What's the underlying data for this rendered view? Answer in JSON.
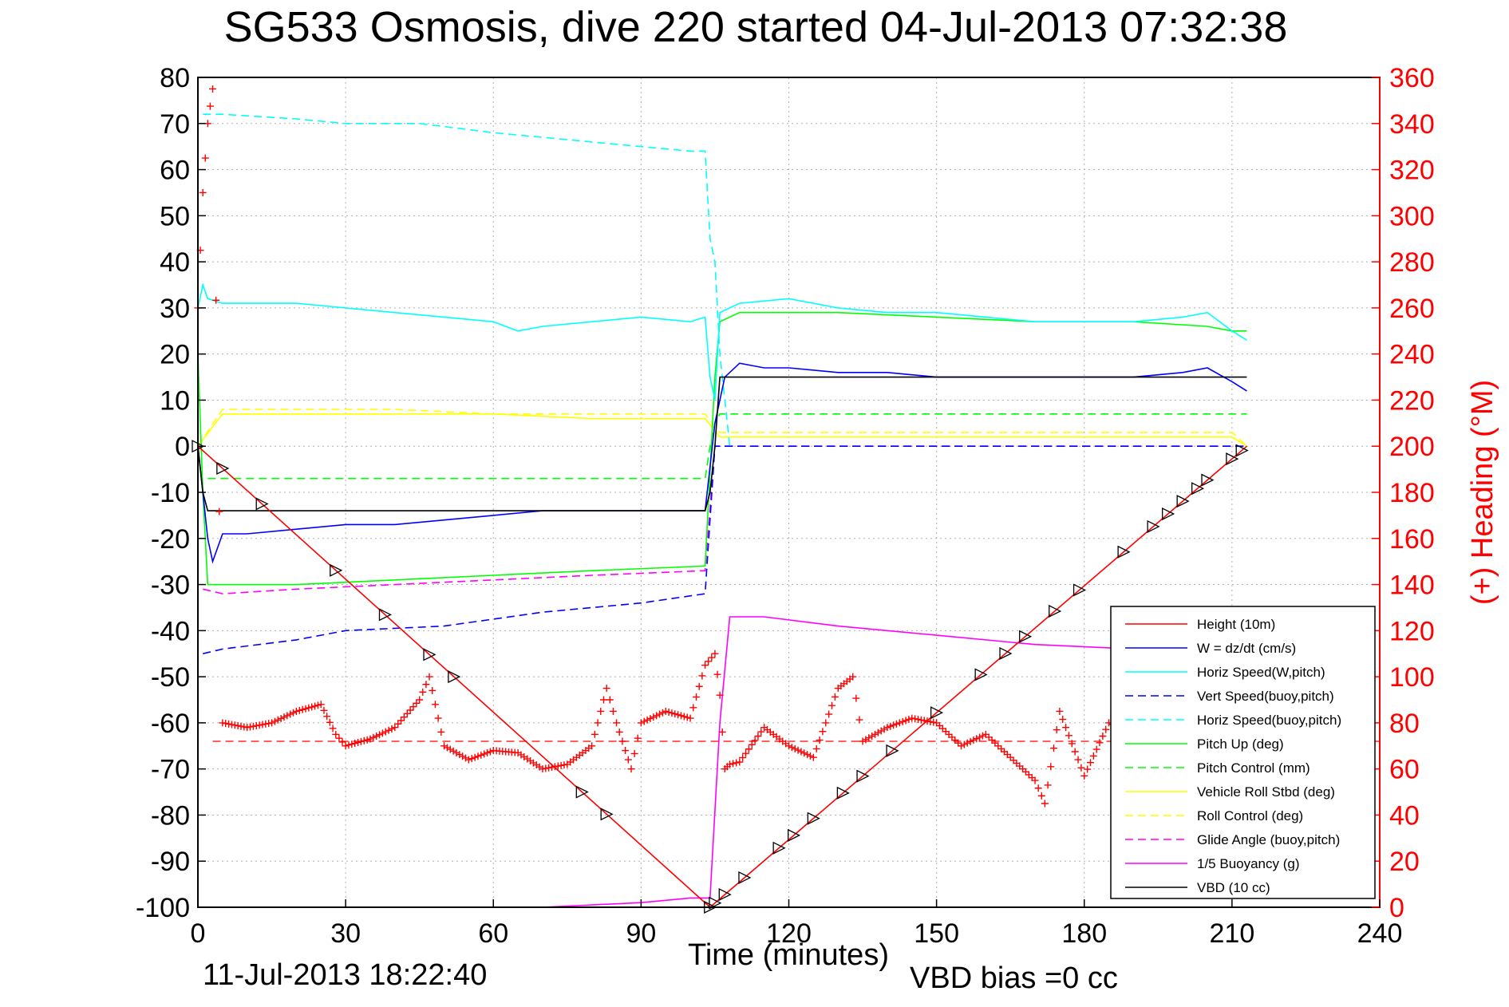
{
  "title": "SG533 Osmosis, dive 220 started 04-Jul-2013 07:32:38",
  "footer": {
    "timestamp": "11-Jul-2013 18:22:40",
    "vbd_bias": "VBD bias =0 cc"
  },
  "chart_data": {
    "type": "line",
    "title": "SG533 Osmosis, dive 220 started 04-Jul-2013 07:32:38",
    "xlabel": "Time (minutes)",
    "ylabel": "",
    "y2label": "(+) Heading (°M)",
    "xlim": [
      0,
      240
    ],
    "ylim": [
      -100,
      80
    ],
    "y2lim": [
      0,
      360
    ],
    "xticks": [
      0,
      30,
      60,
      90,
      120,
      150,
      180,
      210,
      240
    ],
    "yticks": [
      -100,
      -90,
      -80,
      -70,
      -60,
      -50,
      -40,
      -30,
      -20,
      -10,
      0,
      10,
      20,
      30,
      40,
      50,
      60,
      70,
      80
    ],
    "y2ticks": [
      0,
      20,
      40,
      60,
      80,
      100,
      120,
      140,
      160,
      180,
      200,
      220,
      240,
      260,
      280,
      300,
      320,
      340,
      360
    ],
    "grid": true,
    "legend_position": "lower-right",
    "colors": {
      "height": "#ff0000",
      "w": "#0000ff",
      "horiz_speed": "#00ffff",
      "pitch": "#00ff00",
      "roll": "#ffff00",
      "glide": "#ff00ff",
      "buoyancy": "#ff00ff",
      "vbd": "#000000",
      "heading": "#ff0000",
      "right_axis": "#ff0000"
    },
    "series": [
      {
        "name": "Height (10m)",
        "style": "solid",
        "color": "#ff0000",
        "x": [
          0,
          104,
          213
        ],
        "y": [
          0,
          -100,
          0
        ]
      },
      {
        "name": "W = dz/dt (cm/s)",
        "style": "solid",
        "color": "#0000ff",
        "x": [
          0,
          1,
          2,
          3,
          5,
          10,
          20,
          30,
          40,
          50,
          60,
          70,
          80,
          90,
          100,
          103,
          105,
          107,
          110,
          115,
          120,
          130,
          140,
          150,
          160,
          170,
          180,
          190,
          200,
          205,
          210,
          213
        ],
        "y": [
          0,
          -10,
          -20,
          -25,
          -19,
          -19,
          -18,
          -17,
          -17,
          -16,
          -15,
          -14,
          -14,
          -14,
          -14,
          -14,
          5,
          15,
          18,
          17,
          17,
          16,
          16,
          15,
          15,
          15,
          15,
          15,
          16,
          17,
          14,
          12
        ]
      },
      {
        "name": "Horiz Speed(W,pitch)",
        "style": "solid",
        "color": "#00ffff",
        "x": [
          0,
          1,
          2,
          5,
          10,
          20,
          30,
          40,
          50,
          60,
          65,
          70,
          80,
          90,
          100,
          103,
          104,
          105,
          106,
          110,
          120,
          130,
          140,
          150,
          160,
          170,
          180,
          190,
          200,
          205,
          210,
          213
        ],
        "y": [
          30,
          35,
          32,
          31,
          31,
          31,
          30,
          29,
          28,
          27,
          25,
          26,
          27,
          28,
          27,
          28,
          15,
          10,
          29,
          31,
          32,
          30,
          29,
          29,
          28,
          27,
          27,
          27,
          28,
          29,
          25,
          23
        ]
      },
      {
        "name": "Vert Speed(buoy,pitch)",
        "style": "dashed",
        "color": "#0000ff",
        "x": [
          1,
          5,
          20,
          30,
          50,
          70,
          90,
          103,
          105,
          106,
          213
        ],
        "y": [
          -45,
          -44,
          -42,
          -40,
          -39,
          -36,
          -34,
          -32,
          0,
          0,
          0
        ]
      },
      {
        "name": "Horiz Speed(buoy,pitch)",
        "style": "dashed",
        "color": "#00ffff",
        "x": [
          1,
          5,
          20,
          30,
          45,
          60,
          80,
          90,
          100,
          103,
          104,
          105,
          106,
          108
        ],
        "y": [
          72,
          72,
          71,
          70,
          70,
          68,
          66,
          65,
          64,
          64,
          45,
          40,
          20,
          0
        ]
      },
      {
        "name": "Pitch Up (deg)",
        "style": "solid",
        "color": "#00ff00",
        "x": [
          0,
          1,
          2,
          5,
          20,
          40,
          60,
          80,
          103,
          105,
          106,
          110,
          130,
          150,
          170,
          190,
          205,
          210,
          213
        ],
        "y": [
          20,
          -10,
          -30,
          -30,
          -30,
          -29,
          -28,
          -27,
          -26,
          15,
          27,
          29,
          29,
          28,
          27,
          27,
          26,
          25,
          25
        ]
      },
      {
        "name": "Pitch Control (mm)",
        "style": "dashed",
        "color": "#00ff00",
        "x": [
          2,
          103,
          104,
          105,
          106,
          213
        ],
        "y": [
          -7,
          -7,
          0,
          5,
          7,
          7
        ]
      },
      {
        "name": "Vehicle Roll Stbd (deg)",
        "style": "solid",
        "color": "#ffff00",
        "x": [
          0,
          5,
          20,
          40,
          60,
          80,
          103,
          106,
          110,
          130,
          150,
          170,
          190,
          210,
          213
        ],
        "y": [
          0,
          7,
          7,
          7,
          7,
          6,
          6,
          2,
          2,
          2,
          2,
          2,
          2,
          2,
          0
        ]
      },
      {
        "name": "Roll Control (deg)",
        "style": "dashed",
        "color": "#ffff00",
        "x": [
          0,
          5,
          20,
          40,
          60,
          80,
          103,
          106,
          110,
          130,
          150,
          170,
          190,
          210,
          213
        ],
        "y": [
          0,
          8,
          8,
          8,
          7,
          7,
          7,
          3,
          3,
          3,
          3,
          3,
          3,
          3,
          0
        ]
      },
      {
        "name": "Glide Angle (buoy,pitch)",
        "style": "dashed",
        "color": "#ff00ff",
        "x": [
          1,
          5,
          20,
          40,
          60,
          80,
          103,
          105,
          106,
          213
        ],
        "y": [
          -31,
          -32,
          -31,
          -30,
          -29,
          -28,
          -27,
          0,
          0,
          0
        ]
      },
      {
        "name": "1/5 Buoyancy (g)",
        "style": "solid",
        "color": "#ff00ff",
        "x": [
          70,
          90,
          100,
          104,
          106,
          108,
          115,
          130,
          150,
          170,
          190,
          210
        ],
        "y": [
          -100,
          -99,
          -98,
          -98,
          -60,
          -37,
          -37,
          -39,
          -41,
          -43,
          -44,
          -44
        ]
      },
      {
        "name": "VBD (10 cc)",
        "style": "solid",
        "color": "#000000",
        "x": [
          0,
          1,
          2,
          103,
          104,
          105,
          106,
          213
        ],
        "y": [
          0,
          -10,
          -14,
          -14,
          -10,
          0,
          15,
          15
        ]
      }
    ],
    "heading": {
      "name": "(+) Heading (°M)",
      "color": "#ff0000",
      "mean": 72,
      "x": [
        0,
        1,
        2,
        3,
        5,
        10,
        15,
        20,
        25,
        28,
        30,
        35,
        40,
        45,
        47,
        50,
        55,
        60,
        65,
        70,
        75,
        80,
        83,
        85,
        88,
        90,
        95,
        100,
        103,
        105,
        106,
        107,
        108,
        110,
        115,
        120,
        125,
        130,
        133,
        135,
        140,
        145,
        150,
        155,
        160,
        165,
        170,
        172,
        175,
        180,
        185,
        190,
        195,
        200,
        205,
        210
      ],
      "y": [
        260,
        310,
        340,
        355,
        80,
        78,
        80,
        85,
        88,
        75,
        70,
        73,
        78,
        90,
        100,
        70,
        64,
        68,
        67,
        60,
        62,
        70,
        95,
        80,
        60,
        80,
        85,
        82,
        105,
        110,
        92,
        60,
        62,
        63,
        78,
        70,
        65,
        95,
        100,
        72,
        78,
        82,
        80,
        70,
        75,
        65,
        55,
        45,
        85,
        57,
        80,
        75,
        72,
        70,
        78,
        82
      ]
    }
  },
  "legend": {
    "items": [
      {
        "label": "Height (10m)",
        "color": "#ff0000",
        "dash": "none"
      },
      {
        "label": "W = dz/dt (cm/s)",
        "color": "#0000ff",
        "dash": "none"
      },
      {
        "label": "Horiz Speed(W,pitch)",
        "color": "#00ffff",
        "dash": "none"
      },
      {
        "label": "Vert Speed(buoy,pitch)",
        "color": "#0000ff",
        "dash": "dashed"
      },
      {
        "label": "Horiz Speed(buoy,pitch)",
        "color": "#00ffff",
        "dash": "dashed"
      },
      {
        "label": "Pitch Up (deg)",
        "color": "#00ff00",
        "dash": "none"
      },
      {
        "label": "Pitch Control (mm)",
        "color": "#00ff00",
        "dash": "dashed"
      },
      {
        "label": "Vehicle Roll Stbd (deg)",
        "color": "#ffff00",
        "dash": "none"
      },
      {
        "label": "Roll Control (deg)",
        "color": "#ffff00",
        "dash": "dashed"
      },
      {
        "label": "Glide Angle (buoy,pitch)",
        "color": "#ff00ff",
        "dash": "dashed"
      },
      {
        "label": "1/5 Buoyancy (g)",
        "color": "#ff00ff",
        "dash": "none"
      },
      {
        "label": "VBD (10 cc)",
        "color": "#000000",
        "dash": "none"
      }
    ]
  }
}
